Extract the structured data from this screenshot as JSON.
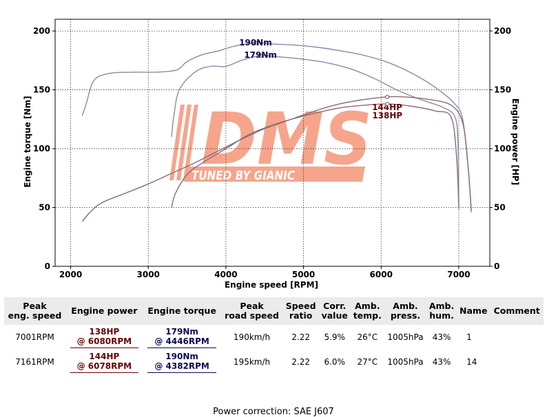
{
  "chart_data": {
    "type": "line",
    "xlabel": "Engine speed [RPM]",
    "ylabel_left": "Engine torque [Nm]",
    "ylabel_right": "Engine power [HP]",
    "xlim": [
      1800,
      7400
    ],
    "ylim": [
      0,
      210
    ],
    "x_ticks": [
      2000,
      3000,
      4000,
      5000,
      6000,
      7000
    ],
    "y_ticks": [
      0,
      50,
      100,
      150,
      200
    ],
    "grid": true,
    "series": [
      {
        "id": "torque_run14",
        "color": "#8a8aa6",
        "x": [
          2150,
          2200,
          2300,
          2500,
          2800,
          3100,
          3300,
          3400,
          3500,
          3700,
          3900,
          4100,
          4382,
          4600,
          4900,
          5200,
          5500,
          5800,
          6100,
          6400,
          6700,
          6950,
          7050,
          7120,
          7161
        ],
        "y": [
          128,
          138,
          158,
          164,
          165,
          165,
          166,
          168,
          174,
          180,
          183,
          187,
          190,
          189,
          188,
          186,
          183,
          179,
          173,
          164,
          152,
          138,
          125,
          85,
          48
        ]
      },
      {
        "id": "torque_run1",
        "color": "#8a8aa6",
        "x": [
          3300,
          3330,
          3400,
          3600,
          3800,
          4000,
          4200,
          4446,
          4700,
          5000,
          5300,
          5600,
          5900,
          6200,
          6500,
          6800,
          6950,
          6990,
          7001
        ],
        "y": [
          110,
          128,
          150,
          165,
          170,
          170,
          175,
          179,
          178,
          176,
          173,
          168,
          160,
          150,
          142,
          135,
          127,
          105,
          48
        ]
      },
      {
        "id": "power_run14",
        "color": "#8a6a78",
        "x": [
          2150,
          2250,
          2400,
          2700,
          3000,
          3300,
          3600,
          3900,
          4200,
          4500,
          4800,
          5100,
          5400,
          5700,
          6078,
          6300,
          6600,
          6900,
          7050,
          7120,
          7161
        ],
        "y": [
          38,
          46,
          54,
          62,
          70,
          79,
          88,
          98,
          108,
          117,
          124,
          131,
          137,
          141,
          144,
          144,
          142,
          137,
          122,
          85,
          46
        ]
      },
      {
        "id": "power_run1",
        "color": "#8a6a78",
        "x": [
          3300,
          3350,
          3500,
          3700,
          4000,
          4300,
          4600,
          4900,
          5200,
          5500,
          5800,
          6080,
          6400,
          6700,
          6900,
          6970,
          7001
        ],
        "y": [
          50,
          62,
          78,
          88,
          100,
          112,
          120,
          126,
          131,
          135,
          137,
          138,
          136,
          132,
          127,
          95,
          50
        ]
      }
    ],
    "peaks": [
      {
        "label": "190Nm",
        "x": 4382,
        "y": 190,
        "color": "#0a0a50"
      },
      {
        "label": "179Nm",
        "x": 4446,
        "y": 179,
        "color": "#0a0a50"
      },
      {
        "label": "144HP",
        "x": 6078,
        "y": 144,
        "color": "#6b0000"
      },
      {
        "label": "138HP",
        "x": 6080,
        "y": 138,
        "color": "#6b0000"
      }
    ]
  },
  "watermark": {
    "brand": "DMS",
    "tagline": "TUNED BY GIANIC",
    "color": "#f6a58c"
  },
  "table": {
    "headers": {
      "peak_eng_speed": [
        "Peak",
        "eng. speed"
      ],
      "engine_power": "Engine power",
      "engine_torque": "Engine torque",
      "peak_road_speed": [
        "Peak",
        "road speed"
      ],
      "speed_ratio": [
        "Speed",
        "ratio"
      ],
      "corr_value": [
        "Corr.",
        "value"
      ],
      "amb_temp": [
        "Amb.",
        "temp."
      ],
      "amb_press": [
        "Amb.",
        "press."
      ],
      "amb_hum": [
        "Amb.",
        "hum."
      ],
      "name": "Name",
      "comment": "Comment"
    },
    "rows": [
      {
        "peak_eng_speed": "7001RPM",
        "power": "138HP",
        "power_rpm": "@ 6080RPM",
        "torque": "179Nm",
        "torque_rpm": "@ 4446RPM",
        "road_speed": "190km/h",
        "speed_ratio": "2.22",
        "corr_value": "5.9%",
        "amb_temp": "26°C",
        "amb_press": "1005hPa",
        "amb_hum": "43%",
        "name": "1",
        "comment": ""
      },
      {
        "peak_eng_speed": "7161RPM",
        "power": "144HP",
        "power_rpm": "@ 6078RPM",
        "torque": "190Nm",
        "torque_rpm": "@ 4382RPM",
        "road_speed": "195km/h",
        "speed_ratio": "2.22",
        "corr_value": "6.0%",
        "amb_temp": "27°C",
        "amb_press": "1005hPa",
        "amb_hum": "43%",
        "name": "14",
        "comment": ""
      }
    ]
  },
  "footer": {
    "text": "Power correction: SAE J607"
  }
}
